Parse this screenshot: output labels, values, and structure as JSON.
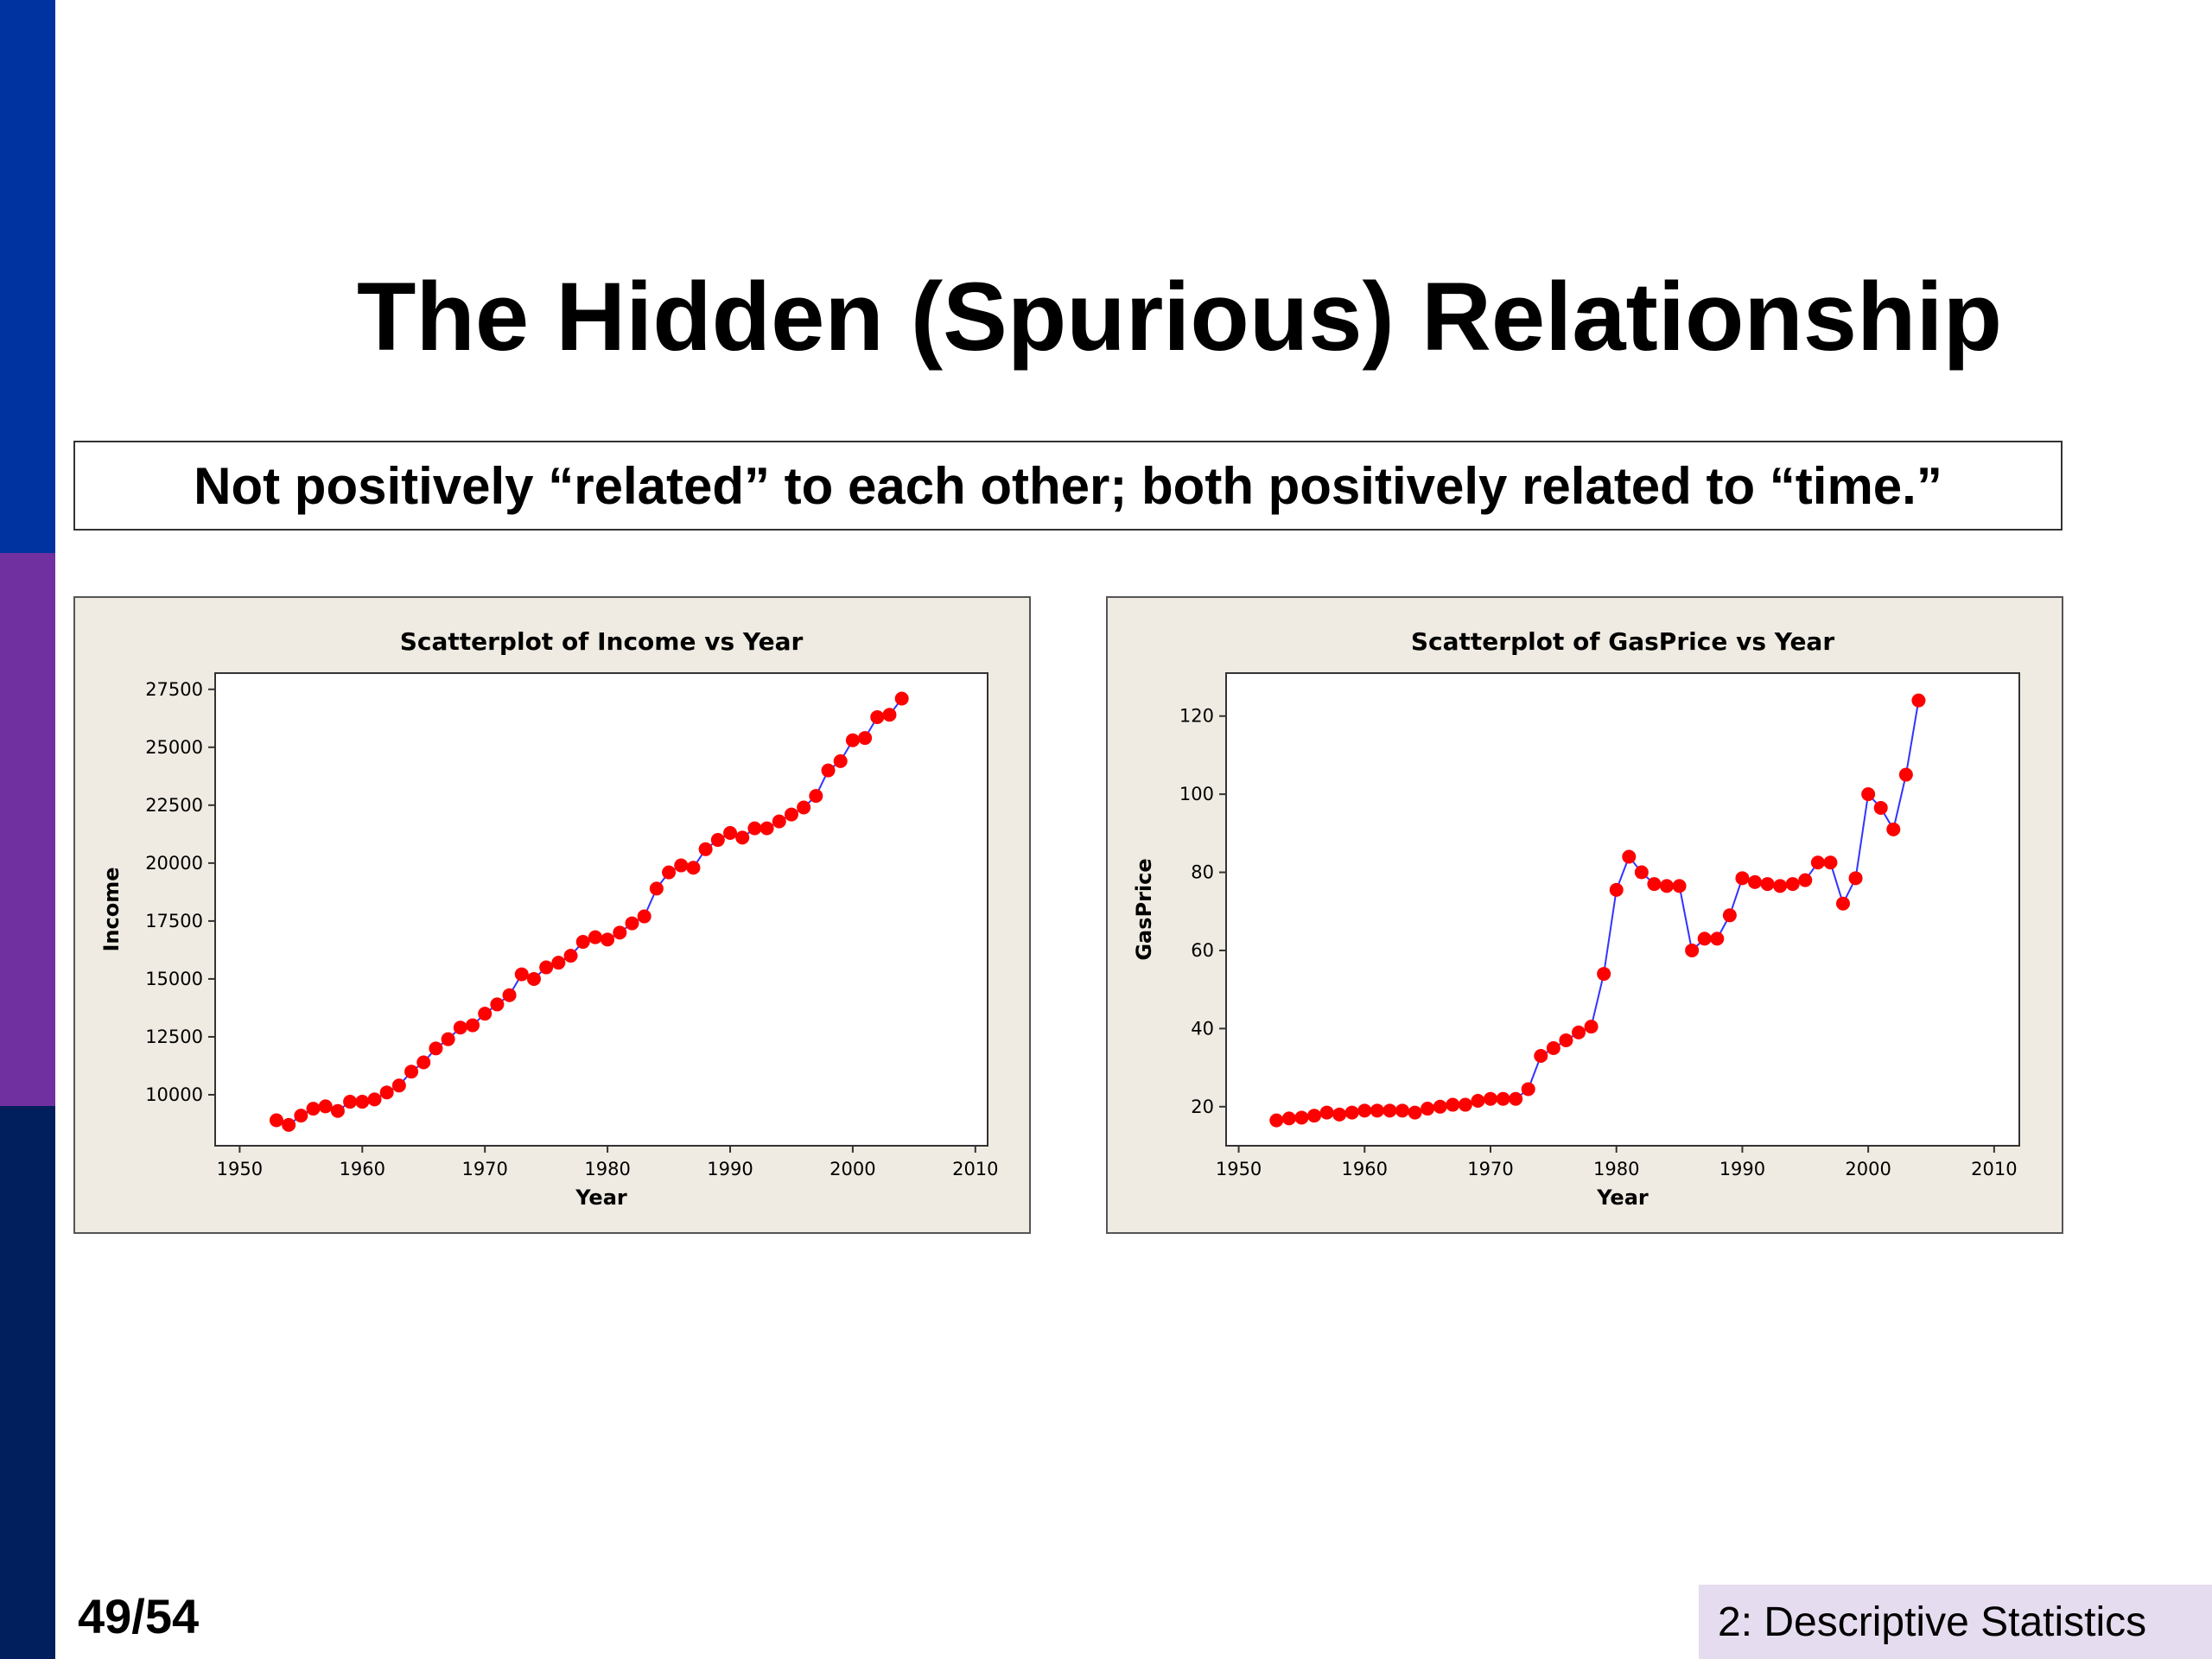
{
  "slide": {
    "title": "The Hidden (Spurious) Relationship",
    "subtitle": "Not positively “related” to each other; both positively related to “time.”",
    "page_number": "49/54",
    "section": "2: Descriptive Statistics"
  },
  "colors": {
    "sidebar": [
      "#0033a0",
      "#7030a0",
      "#001f5c"
    ],
    "panel_bg": "#efebe2",
    "marker": "#ff0000",
    "line": "#3333ff"
  },
  "chart_data": [
    {
      "type": "scatter",
      "connected": true,
      "title": "Scatterplot of Income vs Year",
      "xlabel": "Year",
      "ylabel": "Income",
      "xlim": [
        1948,
        2011
      ],
      "ylim": [
        7800,
        28200
      ],
      "xticks": [
        1950,
        1960,
        1970,
        1980,
        1990,
        2000,
        2010
      ],
      "yticks": [
        10000,
        12500,
        15000,
        17500,
        20000,
        22500,
        25000,
        27500
      ],
      "x": [
        1953,
        1954,
        1955,
        1956,
        1957,
        1958,
        1959,
        1960,
        1961,
        1962,
        1963,
        1964,
        1965,
        1966,
        1967,
        1968,
        1969,
        1970,
        1971,
        1972,
        1973,
        1974,
        1975,
        1976,
        1977,
        1978,
        1979,
        1980,
        1981,
        1982,
        1983,
        1984,
        1985,
        1986,
        1987,
        1988,
        1989,
        1990,
        1991,
        1992,
        1993,
        1994,
        1995,
        1996,
        1997,
        1998,
        1999,
        2000,
        2001,
        2002,
        2003,
        2004
      ],
      "y": [
        8900,
        8700,
        9100,
        9400,
        9500,
        9300,
        9700,
        9700,
        9800,
        10100,
        10400,
        11000,
        11400,
        12000,
        12400,
        12900,
        13000,
        13500,
        13900,
        14300,
        15200,
        15000,
        15500,
        15700,
        16000,
        16600,
        16800,
        16700,
        17000,
        17400,
        17700,
        18900,
        19600,
        19900,
        19800,
        20600,
        21000,
        21300,
        21100,
        21500,
        21500,
        21800,
        22100,
        22400,
        22900,
        24000,
        24400,
        25300,
        25400,
        26300,
        26400,
        27100
      ]
    },
    {
      "type": "scatter",
      "connected": true,
      "title": "Scatterplot of GasPrice vs Year",
      "xlabel": "Year",
      "ylabel": "GasPrice",
      "xlim": [
        1949,
        2012
      ],
      "ylim": [
        10,
        131
      ],
      "xticks": [
        1950,
        1960,
        1970,
        1980,
        1990,
        2000,
        2010
      ],
      "yticks": [
        20,
        40,
        60,
        80,
        100,
        120
      ],
      "x": [
        1953,
        1954,
        1955,
        1956,
        1957,
        1958,
        1959,
        1960,
        1961,
        1962,
        1963,
        1964,
        1965,
        1966,
        1967,
        1968,
        1969,
        1970,
        1971,
        1972,
        1973,
        1974,
        1975,
        1976,
        1977,
        1978,
        1979,
        1980,
        1981,
        1982,
        1983,
        1984,
        1985,
        1986,
        1987,
        1988,
        1989,
        1990,
        1991,
        1992,
        1993,
        1994,
        1995,
        1996,
        1997,
        1998,
        1999,
        2000,
        2001,
        2002,
        2003,
        2004
      ],
      "y": [
        16.5,
        17,
        17.2,
        17.7,
        18.5,
        18,
        18.5,
        19,
        19,
        19,
        19,
        18.5,
        19.5,
        20,
        20.5,
        20.5,
        21.5,
        22,
        22,
        22,
        24.5,
        33,
        35,
        37,
        39,
        40.5,
        54,
        75.5,
        84,
        80,
        77,
        76.5,
        76.5,
        60,
        63,
        63,
        69,
        78.5,
        77.5,
        77,
        76.5,
        77,
        78,
        82.5,
        82.5,
        72,
        78.5,
        100,
        96.5,
        91,
        105,
        124
      ]
    }
  ]
}
